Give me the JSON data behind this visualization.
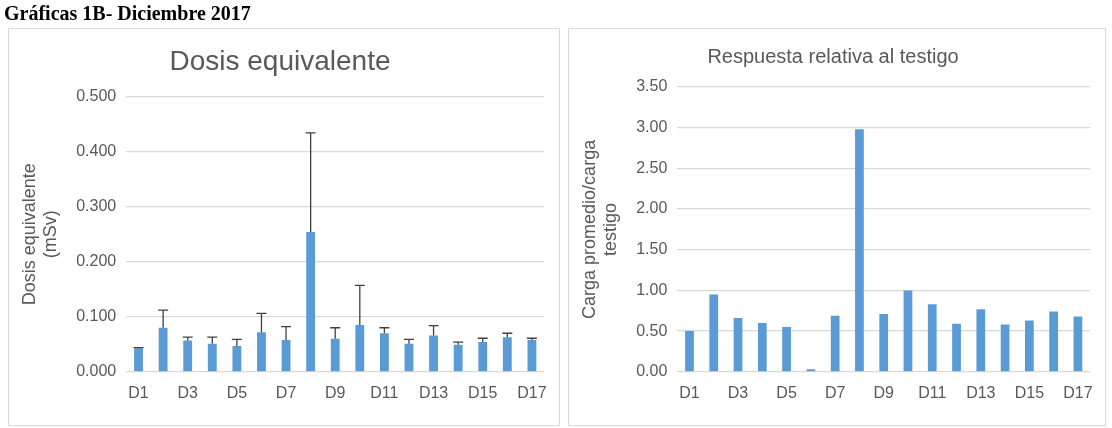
{
  "chart_data": [
    {
      "type": "bar",
      "title": "Dosis equivalente",
      "ylabel": "Dosis equivalente (mSv)",
      "annotations": [
        "Gráficas 1B- Diciembre 2017"
      ],
      "categories": [
        "D1",
        null,
        "D3",
        null,
        "D5",
        null,
        "D7",
        null,
        "D9",
        null,
        "D11",
        null,
        "D13",
        null,
        "D15",
        null,
        "D17"
      ],
      "values": [
        0.043,
        0.08,
        0.057,
        0.051,
        0.047,
        0.072,
        0.058,
        0.254,
        0.06,
        0.085,
        0.07,
        0.051,
        0.066,
        0.049,
        0.054,
        0.063,
        0.058
      ],
      "errors": [
        [
          0.043,
          0.044
        ],
        [
          0.08,
          0.112
        ],
        [
          0.057,
          0.063
        ],
        [
          0.051,
          0.063
        ],
        [
          0.047,
          0.059
        ],
        [
          0.072,
          0.106
        ],
        [
          0.058,
          0.082
        ],
        [
          0.254,
          0.434
        ],
        [
          0.06,
          0.08
        ],
        [
          0.085,
          0.157
        ],
        [
          0.07,
          0.08
        ],
        [
          0.051,
          0.059
        ],
        [
          0.066,
          0.084
        ],
        [
          0.049,
          0.054
        ],
        [
          0.054,
          0.061
        ],
        [
          0.063,
          0.07
        ],
        [
          0.058,
          0.061
        ]
      ],
      "color": "#5b9bd5",
      "ylim": [
        0,
        0.5
      ],
      "yticks": [
        {
          "value": 0,
          "label": "0.000"
        },
        {
          "value": 0.1,
          "label": "0.100"
        },
        {
          "value": 0.2,
          "label": "0.200"
        },
        {
          "value": 0.3,
          "label": "0.300"
        },
        {
          "value": 0.4,
          "label": "0.400"
        },
        {
          "value": 0.5,
          "label": "0.500"
        }
      ],
      "grid": "y",
      "legend": false
    },
    {
      "type": "bar",
      "title": "Respuesta relativa al testigo",
      "ylabel": "Carga promedio/carga testigo",
      "categories": [
        "D1",
        null,
        "D3",
        null,
        "D5",
        null,
        "D7",
        null,
        "D9",
        null,
        "D11",
        null,
        "D13",
        null,
        "D15",
        null,
        "D17"
      ],
      "values": [
        0.5,
        0.95,
        0.66,
        0.6,
        0.55,
        0.03,
        0.69,
        2.98,
        0.71,
        1.0,
        0.83,
        0.59,
        0.77,
        0.58,
        0.63,
        0.74,
        0.68
      ],
      "color": "#5b9bd5",
      "ylim": [
        0,
        3.5
      ],
      "yticks": [
        {
          "value": 0,
          "label": "0.00"
        },
        {
          "value": 0.5,
          "label": "0.50"
        },
        {
          "value": 1,
          "label": "1.00"
        },
        {
          "value": 1.5,
          "label": "1.50"
        },
        {
          "value": 2,
          "label": "2.00"
        },
        {
          "value": 2.5,
          "label": "2.50"
        },
        {
          "value": 3,
          "label": "3.00"
        },
        {
          "value": 3.5,
          "label": "3.50"
        }
      ],
      "grid": "y",
      "legend": false
    }
  ]
}
